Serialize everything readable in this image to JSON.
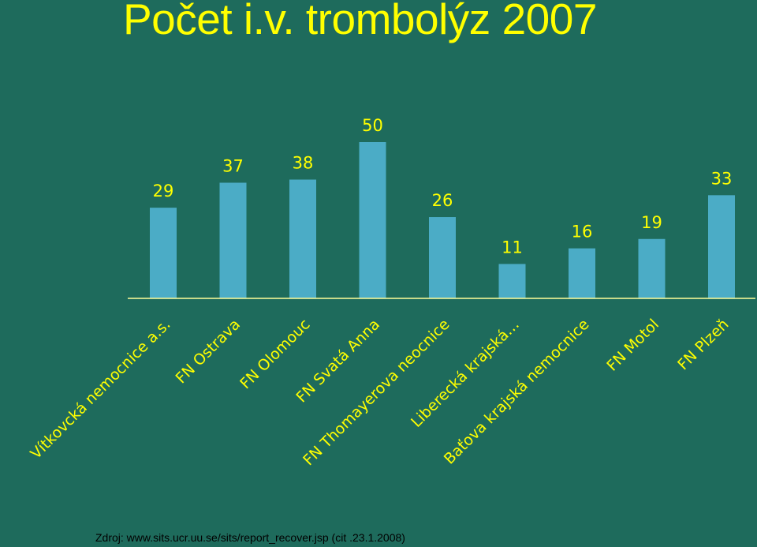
{
  "slide": {
    "title": "Počet i.v. trombolýz 2007",
    "source": "Zdroj: www.sits.ucr.uu.se/sits/report_recover.jsp (cit .23.1.2008)"
  },
  "colors": {
    "background": "#1e6b5c",
    "bar": "#4bacc6",
    "text": "#ffff00",
    "axis": "#ffff99"
  },
  "chart_data": {
    "type": "bar",
    "title": "Počet i.v. trombolýz 2007",
    "categories": [
      "Vítkovcká nemocnice a.s.",
      "FN Ostrava",
      "FN Olomouc",
      "FN Svatá Anna",
      "FN Thomayerova neocnice",
      "Liberecká krajská…",
      "Baťova krajská nemocnice",
      "FN Motol",
      "FN Plzeň"
    ],
    "values": [
      29,
      37,
      38,
      50,
      26,
      11,
      16,
      19,
      33
    ],
    "ylim": [
      0,
      50
    ],
    "grid": false,
    "legend": "none",
    "data_labels": true
  }
}
